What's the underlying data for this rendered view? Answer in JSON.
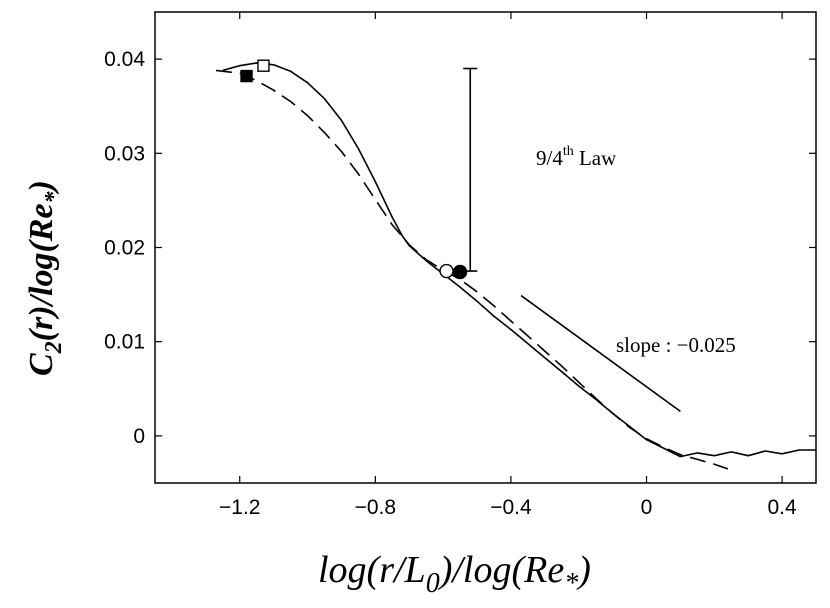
{
  "chart_data": {
    "type": "line",
    "title": "",
    "xlabel": {
      "part1": "log(r/L",
      "sub1": "0",
      "part2": ")/log(Re",
      "sub2": "*",
      "part3": ")"
    },
    "ylabel": {
      "part1": "C",
      "sub1": "2",
      "part2": "(r)/log(Re",
      "sub2": "*",
      "part3": ")"
    },
    "xlim": [
      -1.45,
      0.5
    ],
    "ylim": [
      -0.005,
      0.045
    ],
    "x_ticks": [
      -1.2,
      -0.8,
      -0.4,
      0,
      0.4
    ],
    "x_tick_labels": [
      "−1.2",
      "−0.8",
      "−0.4",
      "0",
      "0.4"
    ],
    "y_ticks": [
      0,
      0.01,
      0.02,
      0.03,
      0.04
    ],
    "y_tick_labels": [
      "0",
      "0.01",
      "0.02",
      "0.03",
      "0.04"
    ],
    "grid": false,
    "series": [
      {
        "style": "solid",
        "x": [
          -1.25,
          -1.2,
          -1.15,
          -1.1,
          -1.05,
          -1.0,
          -0.95,
          -0.9,
          -0.85,
          -0.8,
          -0.75,
          -0.72,
          -0.7,
          -0.65,
          -0.6,
          -0.55,
          -0.5,
          -0.45,
          -0.4,
          -0.35,
          -0.3,
          -0.25,
          -0.2,
          -0.15,
          -0.1,
          -0.05,
          0.0,
          0.05,
          0.1,
          0.15,
          0.2,
          0.25,
          0.3,
          0.35,
          0.4,
          0.45,
          0.5
        ],
        "y": [
          0.0388,
          0.0393,
          0.0396,
          0.0394,
          0.0387,
          0.0375,
          0.0358,
          0.0335,
          0.0305,
          0.027,
          0.0232,
          0.0212,
          0.0202,
          0.0186,
          0.0172,
          0.0158,
          0.0143,
          0.0127,
          0.0113,
          0.0098,
          0.0083,
          0.0068,
          0.0053,
          0.0039,
          0.0024,
          0.001,
          -0.0004,
          -0.0013,
          -0.0022,
          -0.0018,
          -0.0021,
          -0.0017,
          -0.0021,
          -0.0016,
          -0.0019,
          -0.0015,
          -0.0015
        ]
      },
      {
        "style": "dashed",
        "x": [
          -1.27,
          -1.2,
          -1.15,
          -1.1,
          -1.05,
          -1.0,
          -0.95,
          -0.9,
          -0.85,
          -0.8,
          -0.75,
          -0.7,
          -0.65,
          -0.6,
          -0.55,
          -0.5,
          -0.45,
          -0.4,
          -0.35,
          -0.3,
          -0.25,
          -0.2,
          -0.15,
          -0.1,
          -0.05,
          0.0,
          0.05,
          0.1,
          0.15,
          0.2,
          0.24
        ],
        "y": [
          0.0388,
          0.0385,
          0.0377,
          0.0367,
          0.0355,
          0.034,
          0.0322,
          0.0302,
          0.0278,
          0.0251,
          0.0224,
          0.0203,
          0.0187,
          0.0176,
          0.0166,
          0.0153,
          0.0138,
          0.0122,
          0.0106,
          0.009,
          0.0074,
          0.0057,
          0.004,
          0.0024,
          0.0009,
          -0.0003,
          -0.0012,
          -0.002,
          -0.0025,
          -0.003,
          -0.0035
        ]
      }
    ],
    "markers": [
      {
        "shape": "filled-square",
        "x": -1.18,
        "y": 0.0382
      },
      {
        "shape": "open-square",
        "x": -1.13,
        "y": 0.0393
      },
      {
        "shape": "open-circle",
        "x": -0.59,
        "y": 0.0175
      },
      {
        "shape": "filled-circle",
        "x": -0.55,
        "y": 0.0174
      }
    ],
    "error_bar": {
      "x": -0.52,
      "y_low": 0.0175,
      "y_high": 0.039
    },
    "reference_line": {
      "x": [
        -0.37,
        0.1
      ],
      "y": [
        0.0149,
        0.0026
      ]
    },
    "annotations": {
      "law_main": "9/4",
      "law_sup": "th",
      "law_rest": " Law",
      "slope": "slope : −0.025"
    }
  }
}
